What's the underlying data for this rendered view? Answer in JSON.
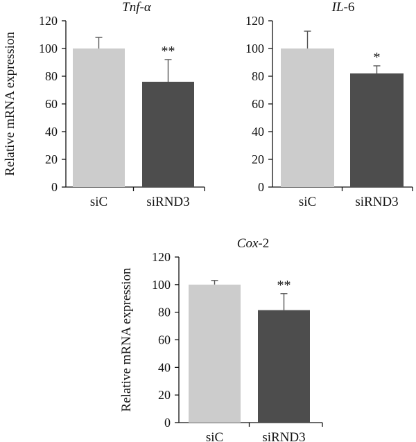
{
  "colors": {
    "siC": "#cccccc",
    "siRND3": "#4d4d4d",
    "axis": "#111111",
    "errorbar": "#555555"
  },
  "chart_data": [
    {
      "type": "bar",
      "title": "Tnf-α",
      "title_tail": "",
      "ylabel": "Relative mRNA expression",
      "ylim": [
        0,
        120
      ],
      "yticks": [
        0,
        20,
        40,
        60,
        80,
        100,
        120
      ],
      "categories": [
        "siC",
        "siRND3"
      ],
      "values": [
        100,
        76
      ],
      "errors": [
        8,
        16
      ],
      "significance": [
        "",
        "**"
      ],
      "grid": false
    },
    {
      "type": "bar",
      "title": "IL",
      "title_tail": "-6",
      "ylabel": "",
      "ylim": [
        0,
        120
      ],
      "yticks": [
        0,
        20,
        40,
        60,
        80,
        100,
        120
      ],
      "categories": [
        "siC",
        "siRND3"
      ],
      "values": [
        100,
        82
      ],
      "errors": [
        12.5,
        5.5
      ],
      "significance": [
        "",
        "*"
      ],
      "grid": false
    },
    {
      "type": "bar",
      "title": "Cox",
      "title_tail": "-2",
      "ylabel": "Relative mRNA expression",
      "ylim": [
        0,
        120
      ],
      "yticks": [
        0,
        20,
        40,
        60,
        80,
        100,
        120
      ],
      "categories": [
        "siC",
        "siRND3"
      ],
      "values": [
        100,
        81.5
      ],
      "errors": [
        3,
        12
      ],
      "significance": [
        "",
        "**"
      ],
      "grid": false
    }
  ]
}
